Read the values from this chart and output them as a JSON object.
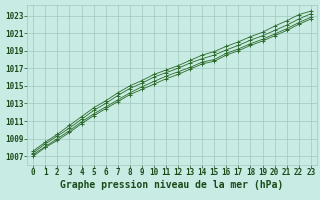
{
  "title": "Graphe pression niveau de la mer (hPa)",
  "xlabel_hours": [
    0,
    1,
    2,
    3,
    4,
    5,
    6,
    7,
    8,
    9,
    10,
    11,
    12,
    13,
    14,
    15,
    16,
    17,
    18,
    19,
    20,
    21,
    22,
    23
  ],
  "yticks": [
    1007,
    1009,
    1011,
    1013,
    1015,
    1017,
    1019,
    1021,
    1023
  ],
  "ylim": [
    1006.0,
    1024.2
  ],
  "xlim": [
    -0.5,
    23.5
  ],
  "line1": [
    1007.2,
    1008.1,
    1009.0,
    1009.9,
    1010.9,
    1011.8,
    1012.6,
    1013.4,
    1014.2,
    1014.9,
    1015.5,
    1016.1,
    1016.6,
    1017.1,
    1017.7,
    1018.0,
    1018.7,
    1019.2,
    1019.8,
    1020.3,
    1020.9,
    1021.5,
    1022.2,
    1022.8
  ],
  "line2": [
    1007.4,
    1008.4,
    1009.3,
    1010.2,
    1011.2,
    1012.2,
    1013.0,
    1013.9,
    1014.7,
    1015.3,
    1016.0,
    1016.5,
    1017.0,
    1017.6,
    1018.1,
    1018.5,
    1019.1,
    1019.6,
    1020.2,
    1020.7,
    1021.3,
    1021.9,
    1022.6,
    1023.2
  ],
  "line3": [
    1007.0,
    1008.0,
    1008.8,
    1009.7,
    1010.7,
    1011.6,
    1012.4,
    1013.2,
    1014.0,
    1014.6,
    1015.2,
    1015.8,
    1016.3,
    1016.9,
    1017.5,
    1017.8,
    1018.5,
    1019.0,
    1019.6,
    1020.1,
    1020.7,
    1021.3,
    1022.0,
    1022.6
  ],
  "line4": [
    1007.6,
    1008.6,
    1009.5,
    1010.5,
    1011.5,
    1012.5,
    1013.3,
    1014.2,
    1015.0,
    1015.6,
    1016.3,
    1016.8,
    1017.3,
    1017.9,
    1018.5,
    1018.9,
    1019.5,
    1020.0,
    1020.6,
    1021.1,
    1021.8,
    1022.4,
    1023.1,
    1023.5
  ],
  "line_color": "#2d6b2d",
  "marker_color": "#2d6b2d",
  "bg_color": "#c8ebe3",
  "grid_color": "#a0c8c0",
  "title_color": "#1a4a1a",
  "tick_color": "#1a4a1a",
  "label_fontsize": 5.5,
  "title_fontsize": 7.0
}
